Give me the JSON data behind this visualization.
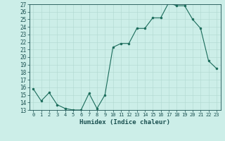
{
  "x": [
    0,
    1,
    2,
    3,
    4,
    5,
    6,
    7,
    8,
    9,
    10,
    11,
    12,
    13,
    14,
    15,
    16,
    17,
    18,
    19,
    20,
    21,
    22,
    23
  ],
  "y": [
    15.8,
    14.2,
    15.3,
    13.7,
    13.2,
    13.0,
    13.0,
    15.2,
    13.2,
    15.0,
    21.3,
    21.8,
    21.8,
    23.8,
    23.8,
    25.2,
    25.2,
    27.2,
    26.8,
    26.8,
    25.0,
    23.8,
    19.5,
    18.5
  ],
  "xlabel": "Humidex (Indice chaleur)",
  "ylim": [
    13,
    27
  ],
  "yticks": [
    13,
    14,
    15,
    16,
    17,
    18,
    19,
    20,
    21,
    22,
    23,
    24,
    25,
    26,
    27
  ],
  "xticks": [
    0,
    1,
    2,
    3,
    4,
    5,
    6,
    7,
    8,
    9,
    10,
    11,
    12,
    13,
    14,
    15,
    16,
    17,
    18,
    19,
    20,
    21,
    22,
    23
  ],
  "line_color": "#1a6b5a",
  "marker_color": "#1a6b5a",
  "bg_color": "#cceee8",
  "grid_color": "#b0d8d0",
  "tick_label_color": "#1a5050",
  "xlabel_color": "#1a5050",
  "xlabel_fontsize": 6.5,
  "ytick_fontsize": 5.5,
  "xtick_fontsize": 5.0
}
